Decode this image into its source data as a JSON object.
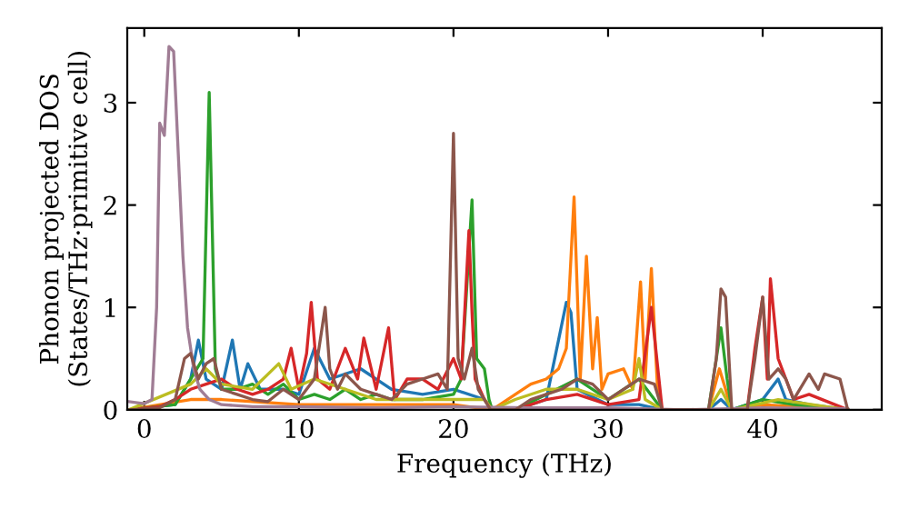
{
  "chart_data": {
    "type": "line",
    "xlabel": "Frequency (THz)",
    "ylabel": "Phonon projected DOS\n(States/THz·primitive cell)",
    "xlim": [
      -1.1,
      47.7
    ],
    "ylim": [
      0,
      3.73
    ],
    "xticks": [
      0,
      10,
      20,
      30,
      40
    ],
    "yticks": [
      0,
      1,
      2,
      3
    ],
    "grid": false,
    "series": [
      {
        "color": "#1f77b4",
        "x": [
          -1,
          2,
          3,
          3.5,
          4,
          5,
          5.7,
          6.2,
          6.7,
          7.5,
          9,
          10,
          11,
          12,
          14,
          16,
          18,
          20,
          22,
          22.5,
          24,
          26,
          27.3,
          27.6,
          28,
          30,
          32,
          33.5,
          36.5,
          37.3,
          38,
          40,
          41,
          41.5,
          43,
          45.5
        ],
        "values": [
          0,
          0.05,
          0.3,
          0.68,
          0.3,
          0.2,
          0.68,
          0.2,
          0.45,
          0.2,
          0.2,
          0.15,
          0.6,
          0.3,
          0.4,
          0.2,
          0.15,
          0.2,
          0.1,
          0,
          0,
          0.1,
          1.05,
          0.95,
          0.2,
          0.05,
          0.05,
          0,
          0,
          0.1,
          0,
          0.1,
          0.3,
          0.1,
          0.05,
          0
        ]
      },
      {
        "color": "#ff7f0e",
        "x": [
          -1,
          3,
          5,
          10,
          15,
          20,
          22.5,
          24,
          25,
          26,
          26.8,
          27.3,
          27.8,
          28.2,
          28.6,
          29,
          29.3,
          29.6,
          30,
          31,
          31.6,
          32.1,
          32.4,
          32.8,
          33.2,
          33.5,
          36.5,
          37.2,
          37.6,
          38,
          40,
          45.5
        ],
        "values": [
          0,
          0.1,
          0.1,
          0.05,
          0.05,
          0.05,
          0,
          0.15,
          0.25,
          0.3,
          0.4,
          0.6,
          2.08,
          0.3,
          1.5,
          0.4,
          0.9,
          0.2,
          0.35,
          0.4,
          0.2,
          1.25,
          0.3,
          1.38,
          0.2,
          0,
          0,
          0.4,
          0.2,
          0,
          0.05,
          0
        ]
      },
      {
        "color": "#2ca02c",
        "x": [
          -1,
          2,
          3,
          3.8,
          4.2,
          4.6,
          5,
          6,
          7,
          8,
          9,
          10,
          11,
          12,
          13,
          14,
          15,
          16,
          18,
          20,
          20.5,
          21.2,
          21.5,
          22,
          22.3,
          22.5,
          24,
          26,
          28,
          30,
          32,
          33,
          33.5,
          36.5,
          37,
          37.3,
          37.7,
          38,
          40,
          42,
          45.5
        ],
        "values": [
          0,
          0.05,
          0.3,
          0.5,
          3.1,
          0.4,
          0.2,
          0.2,
          0.25,
          0.15,
          0.25,
          0.1,
          0.15,
          0.1,
          0.2,
          0.1,
          0.15,
          0.1,
          0.1,
          0.15,
          0.3,
          2.05,
          0.5,
          0.4,
          0.1,
          0,
          0,
          0.15,
          0.3,
          0.1,
          0.3,
          0.1,
          0,
          0,
          0.5,
          0.8,
          0.3,
          0,
          0.1,
          0.05,
          0
        ]
      },
      {
        "color": "#d62728",
        "x": [
          -1,
          1,
          2,
          3,
          4,
          5,
          6,
          7,
          8,
          9,
          9.5,
          10,
          10.5,
          10.8,
          11.2,
          12,
          13,
          13.8,
          14.2,
          15,
          15.8,
          16.2,
          17,
          18,
          19,
          20,
          20.5,
          21.0,
          21.2,
          21.4,
          22,
          22.5,
          24,
          26,
          28,
          30,
          32,
          32.8,
          33.5,
          39,
          39.5,
          40,
          40.3,
          40.5,
          41,
          42,
          43,
          45.5
        ],
        "values": [
          0,
          0.03,
          0.1,
          0.2,
          0.25,
          0.3,
          0.2,
          0.15,
          0.2,
          0.3,
          0.6,
          0.2,
          0.55,
          1.05,
          0.3,
          0.2,
          0.6,
          0.3,
          0.7,
          0.2,
          0.8,
          0.1,
          0.3,
          0.3,
          0.2,
          0.5,
          0.3,
          1.75,
          0.95,
          0.3,
          0.1,
          0,
          0,
          0.1,
          0.15,
          0.05,
          0.1,
          1.0,
          0,
          0,
          0.6,
          1.1,
          0.3,
          1.28,
          0.5,
          0.1,
          0.15,
          0
        ]
      },
      {
        "color": "#bcbd22",
        "x": [
          -1,
          3,
          4,
          5,
          7,
          8.7,
          9.5,
          11,
          13,
          15,
          20,
          22,
          22.5,
          24,
          26,
          28,
          30,
          31.6,
          32,
          32.4,
          33.5,
          36.5,
          37.3,
          38,
          41,
          45.5
        ],
        "values": [
          0,
          0.25,
          0.4,
          0.25,
          0.2,
          0.45,
          0.2,
          0.3,
          0.2,
          0.1,
          0.1,
          0.1,
          0,
          0.1,
          0.2,
          0.2,
          0.1,
          0.2,
          0.5,
          0.1,
          0,
          0,
          0.2,
          0,
          0.1,
          0
        ]
      },
      {
        "color": "#a07d95",
        "x": [
          -1,
          0,
          0.5,
          0.8,
          1.0,
          1.3,
          1.6,
          1.9,
          2.2,
          2.5,
          2.8,
          3.2,
          3.6,
          4.2,
          5,
          7,
          10,
          15,
          20,
          25,
          30,
          35,
          40,
          45.5
        ],
        "values": [
          0.08,
          0.06,
          0.1,
          1.0,
          2.8,
          2.68,
          3.55,
          3.5,
          2.5,
          1.5,
          0.8,
          0.4,
          0.2,
          0.1,
          0.05,
          0.03,
          0.03,
          0.02,
          0.03,
          0.02,
          0.02,
          0,
          0.02,
          0.01
        ]
      },
      {
        "color": "#8c564b",
        "x": [
          -1,
          1,
          2,
          2.6,
          3,
          3.5,
          4,
          4.5,
          5,
          6,
          7,
          8,
          9,
          10,
          11,
          11.7,
          12,
          12.5,
          13,
          14,
          15,
          16,
          17,
          18,
          19,
          19.6,
          20,
          20.3,
          20.7,
          21.2,
          21.6,
          22,
          22.4,
          24,
          25,
          26,
          27,
          28,
          29,
          30,
          31,
          32,
          33,
          33.5,
          36.5,
          37,
          37.3,
          37.6,
          38,
          39,
          39.5,
          40,
          40.4,
          41,
          41.5,
          42,
          43,
          43.6,
          44,
          45,
          45.5
        ],
        "values": [
          0,
          0.02,
          0.1,
          0.5,
          0.55,
          0.3,
          0.45,
          0.5,
          0.2,
          0.15,
          0.1,
          0.08,
          0.2,
          0.1,
          0.3,
          1.0,
          0.4,
          0.2,
          0.35,
          0.2,
          0.15,
          0.1,
          0.25,
          0.3,
          0.35,
          0.2,
          2.7,
          0.5,
          0.3,
          0.6,
          0.2,
          0.1,
          0,
          0,
          0.1,
          0.15,
          0.2,
          0.3,
          0.25,
          0.1,
          0.2,
          0.3,
          0.25,
          0,
          0,
          0.5,
          1.18,
          1.1,
          0,
          0,
          0.5,
          1.1,
          0.3,
          0.4,
          0.3,
          0.1,
          0.35,
          0.2,
          0.35,
          0.3,
          0
        ]
      }
    ]
  }
}
